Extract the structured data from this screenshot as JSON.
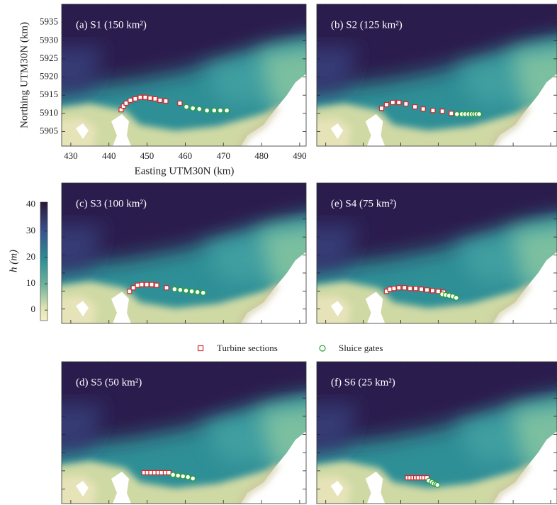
{
  "chart_data": {
    "type": "map",
    "xlabel": "Easting UTM30N (km)",
    "ylabel": "Northing UTM30N (km)",
    "xlim": [
      427.6,
      491.7
    ],
    "ylim": [
      5901,
      5940
    ],
    "xticks": [
      430,
      440,
      450,
      460,
      470,
      480,
      490
    ],
    "yticks": [
      5905,
      5910,
      5915,
      5920,
      5925,
      5930,
      5935
    ],
    "colorbar": {
      "label": "h (m)",
      "lim": [
        -4,
        41
      ],
      "ticks": [
        0,
        10,
        20,
        30,
        40
      ]
    },
    "series": [
      {
        "name": "Turbine sections",
        "color": "#d62728",
        "marker": "square"
      },
      {
        "name": "Sluice gates",
        "color": "#2ca02c",
        "marker": "circle"
      }
    ],
    "panels": [
      {
        "title": "(a) S1 (150 km²)",
        "series": [
          {
            "x": [
              443.2,
              443.8,
              444.5,
              445.6,
              446.9,
              448.2,
              449.5,
              450.8,
              452.1,
              453.4,
              454.9,
              458.6
            ],
            "y": [
              5911.0,
              5912.0,
              5912.8,
              5913.6,
              5914.0,
              5914.4,
              5914.4,
              5914.2,
              5914.0,
              5913.6,
              5913.4,
              5912.8
            ]
          },
          {
            "x": [
              460.3,
              462.0,
              463.7,
              465.7,
              467.6,
              469.2,
              470.9
            ],
            "y": [
              5911.8,
              5911.4,
              5911.2,
              5910.8,
              5910.8,
              5910.8,
              5910.8
            ]
          }
        ]
      },
      {
        "title": "(b) S2 (125 km²)",
        "series": [
          {
            "x": [
              444.9,
              446.2,
              447.9,
              449.5,
              451.4,
              453.8,
              456.0,
              458.6,
              461.1,
              463.5
            ],
            "y": [
              5911.4,
              5912.4,
              5913.0,
              5913.0,
              5912.6,
              5911.8,
              5911.2,
              5910.8,
              5910.6,
              5910.0
            ]
          },
          {
            "x": [
              465.0,
              466.3,
              467.2,
              468.1,
              468.9,
              469.6,
              470.2,
              470.9
            ],
            "y": [
              5909.8,
              5909.8,
              5909.8,
              5909.8,
              5909.8,
              5909.8,
              5909.8,
              5909.8
            ]
          }
        ]
      },
      {
        "title": "(c) S3 (100 km²)",
        "series": [
          {
            "x": [
              445.4,
              446.4,
              447.5,
              448.6,
              449.9,
              451.2,
              452.5,
              455.1
            ],
            "y": [
              5909.9,
              5910.9,
              5911.6,
              5911.8,
              5911.8,
              5911.8,
              5911.6,
              5910.9
            ]
          },
          {
            "x": [
              457.2,
              458.7,
              460.2,
              461.7,
              463.2,
              464.7
            ],
            "y": [
              5910.5,
              5910.3,
              5910.1,
              5909.9,
              5909.7,
              5909.5
            ]
          }
        ]
      },
      {
        "title": "(e) S4 (75 km²)",
        "series": [
          {
            "x": [
              446.2,
              447.1,
              448.2,
              449.5,
              451.0,
              452.5,
              454.0,
              455.5,
              457.0,
              458.5,
              460.0,
              461.4
            ],
            "y": [
              5909.9,
              5910.5,
              5910.7,
              5910.9,
              5910.9,
              5910.7,
              5910.7,
              5910.5,
              5910.3,
              5910.1,
              5909.9,
              5909.7
            ]
          },
          {
            "x": [
              461.1,
              462.0,
              462.9,
              463.9,
              464.8
            ],
            "y": [
              5909.1,
              5908.9,
              5908.7,
              5908.5,
              5908.1
            ]
          }
        ]
      },
      {
        "title": "(d) S5 (50 km²)",
        "series": [
          {
            "x": [
              449.2,
              450.1,
              451.0,
              452.0,
              452.9,
              453.8,
              454.8,
              455.7
            ],
            "y": [
              5909.5,
              5909.5,
              5909.5,
              5909.5,
              5909.5,
              5909.5,
              5909.5,
              5909.5
            ]
          },
          {
            "x": [
              456.8,
              458.1,
              459.4,
              460.7,
              462.0
            ],
            "y": [
              5908.9,
              5908.7,
              5908.5,
              5908.3,
              5907.9
            ]
          }
        ]
      },
      {
        "title": "(f) S6 (25 km²)",
        "series": [
          {
            "x": [
              451.8,
              452.5,
              453.3,
              454.0,
              454.7,
              455.5,
              456.2,
              457.0
            ],
            "y": [
              5908.1,
              5908.1,
              5908.1,
              5908.1,
              5908.1,
              5908.1,
              5908.1,
              5908.1
            ]
          },
          {
            "x": [
              457.5,
              458.3,
              458.8,
              459.4,
              459.8
            ],
            "y": [
              5907.3,
              5906.9,
              5906.5,
              5906.3,
              5906.1
            ]
          }
        ]
      }
    ]
  }
}
